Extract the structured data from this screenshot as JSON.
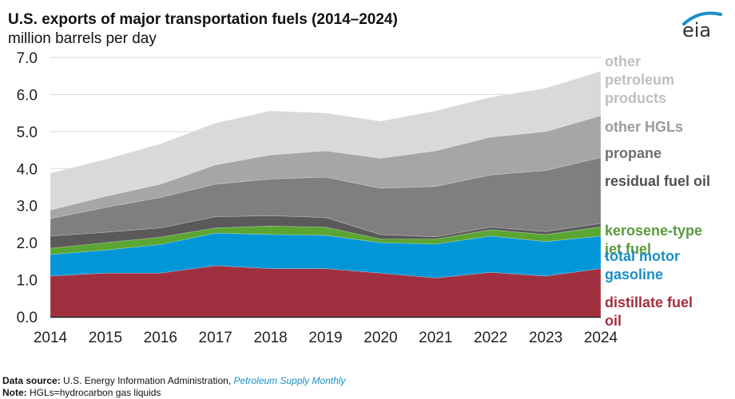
{
  "header": {
    "title": "U.S. exports of major transportation fuels (2014–2024)",
    "units": "million barrels per day",
    "logo_text": "eia"
  },
  "footer": {
    "source_label": "Data source:",
    "source_text": " U.S. Energy Information Administration, ",
    "source_link": "Petroleum Supply Monthly",
    "note_label": "Note:",
    "note_text": " HGLs=hydrocarbon gas liquids"
  },
  "chart_data": {
    "type": "area",
    "stacked": true,
    "title": "U.S. exports of major transportation fuels (2014–2024)",
    "ylabel": "million barrels per day",
    "xlabel": "",
    "ylim": [
      0,
      7
    ],
    "yticks": [
      "0.0",
      "1.0",
      "2.0",
      "3.0",
      "4.0",
      "5.0",
      "6.0",
      "7.0"
    ],
    "categories": [
      "2014",
      "2015",
      "2016",
      "2017",
      "2018",
      "2019",
      "2020",
      "2021",
      "2022",
      "2023",
      "2024"
    ],
    "grid": true,
    "legend_position": "right (direct labels)",
    "series": [
      {
        "name": "distillate fuel oil",
        "color": "#a03040",
        "label_color": "#a03040",
        "values": [
          1.1,
          1.18,
          1.18,
          1.38,
          1.3,
          1.3,
          1.18,
          1.05,
          1.2,
          1.1,
          1.3
        ]
      },
      {
        "name": "total motor gasoline",
        "color": "#0096d7",
        "label_color": "#1a8fc9",
        "values": [
          0.58,
          0.62,
          0.77,
          0.88,
          0.92,
          0.9,
          0.82,
          0.91,
          0.98,
          0.93,
          0.88
        ]
      },
      {
        "name": "kerosene-type jet fuel",
        "color": "#5ba632",
        "label_color": "#5a9a3a",
        "values": [
          0.17,
          0.2,
          0.2,
          0.14,
          0.23,
          0.22,
          0.1,
          0.14,
          0.17,
          0.19,
          0.25
        ]
      },
      {
        "name": "residual fuel oil",
        "color": "#5a5a5a",
        "label_color": "#505050",
        "values": [
          0.33,
          0.28,
          0.25,
          0.3,
          0.28,
          0.26,
          0.12,
          0.06,
          0.07,
          0.08,
          0.09
        ]
      },
      {
        "name": "propane",
        "color": "#7f7f7f",
        "label_color": "#707070",
        "values": [
          0.47,
          0.67,
          0.82,
          0.88,
          0.99,
          1.09,
          1.25,
          1.36,
          1.41,
          1.65,
          1.78
        ]
      },
      {
        "name": "other HGLs",
        "color": "#a6a6a6",
        "label_color": "#9a9a9a",
        "values": [
          0.23,
          0.3,
          0.36,
          0.52,
          0.65,
          0.71,
          0.81,
          0.96,
          1.02,
          1.05,
          1.13
        ]
      },
      {
        "name": "other petroleum products",
        "color": "#d9d9d9",
        "label_color": "#bfbfbf",
        "values": [
          1.0,
          1.0,
          1.09,
          1.13,
          1.19,
          1.02,
          1.0,
          1.08,
          1.08,
          1.17,
          1.2
        ]
      }
    ],
    "legend_labels": [
      {
        "text": "other\npetroleum\nproducts",
        "series": "other petroleum products"
      },
      {
        "text": "other HGLs",
        "series": "other HGLs"
      },
      {
        "text": "propane",
        "series": "propane"
      },
      {
        "text": "residual fuel oil",
        "series": "residual fuel oil"
      },
      {
        "text": "kerosene-type\njet fuel",
        "series": "kerosene-type jet fuel"
      },
      {
        "text": "total motor\ngasoline",
        "series": "total motor gasoline"
      },
      {
        "text": "distillate fuel\noil",
        "series": "distillate fuel oil"
      }
    ]
  }
}
